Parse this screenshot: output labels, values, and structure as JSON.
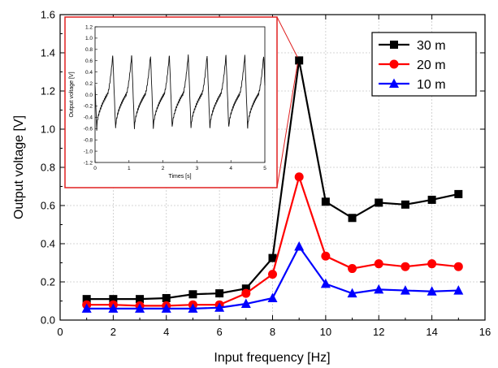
{
  "chart_data": {
    "type": "line",
    "title": "",
    "xlabel": "Input frequency [Hz]",
    "ylabel": "Output voltage [V]",
    "xlim": [
      0,
      16
    ],
    "ylim": [
      0.0,
      1.6
    ],
    "xticks": [
      "0",
      "2",
      "4",
      "6",
      "8",
      "10",
      "12",
      "14",
      "16"
    ],
    "yticks": [
      "0.0",
      "0.2",
      "0.4",
      "0.6",
      "0.8",
      "1.0",
      "1.2",
      "1.4",
      "1.6"
    ],
    "grid": true,
    "legend_position": "top-right",
    "x": [
      1,
      2,
      3,
      4,
      5,
      6,
      7,
      8,
      9,
      10,
      11,
      12,
      13,
      14,
      15
    ],
    "series": [
      {
        "name": "30 m",
        "color": "#000000",
        "marker": "square",
        "values": [
          0.11,
          0.11,
          0.11,
          0.115,
          0.135,
          0.14,
          0.165,
          0.325,
          1.36,
          0.62,
          0.535,
          0.615,
          0.605,
          0.63,
          0.66
        ]
      },
      {
        "name": "20 m",
        "color": "#ff0000",
        "marker": "circle",
        "values": [
          0.08,
          0.08,
          0.075,
          0.075,
          0.08,
          0.08,
          0.14,
          0.24,
          0.75,
          0.335,
          0.27,
          0.295,
          0.28,
          0.295,
          0.28
        ]
      },
      {
        "name": "10 m",
        "color": "#0000ff",
        "marker": "triangle",
        "values": [
          0.06,
          0.06,
          0.06,
          0.06,
          0.06,
          0.065,
          0.085,
          0.115,
          0.385,
          0.19,
          0.14,
          0.16,
          0.155,
          0.15,
          0.155
        ]
      }
    ],
    "inset": {
      "xlabel": "Times [s]",
      "ylabel": "Output voltage [V]",
      "xlim": [
        0,
        5
      ],
      "ylim": [
        -1.2,
        1.2
      ],
      "xticks": [
        "0",
        "1",
        "2",
        "3",
        "4",
        "5"
      ],
      "yticks": [
        "1.2",
        "1.0",
        "0.8",
        "0.6",
        "0.4",
        "0.2",
        "0.0",
        "-0.2",
        "-0.4",
        "-0.6",
        "-0.8",
        "-1.0",
        "-1.2"
      ],
      "signal": {
        "frequency_hz": 1.8,
        "phase_offset_s": 0.05,
        "peak": 0.7,
        "trough": -0.62
      },
      "zoom_source_x": 9
    }
  }
}
